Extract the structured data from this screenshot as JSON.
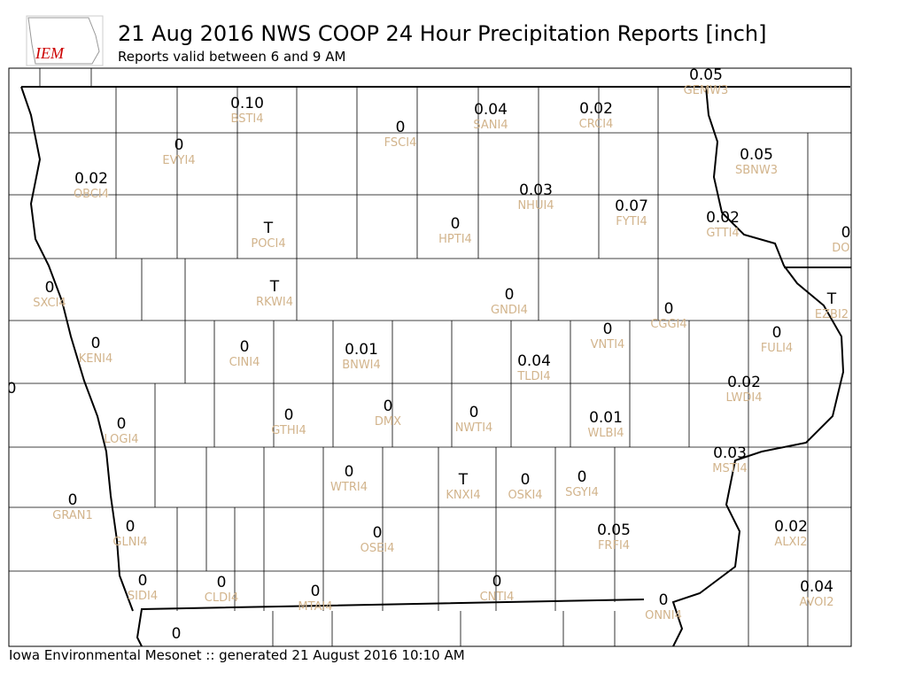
{
  "header": {
    "logo_text": "IEM",
    "title": "21 Aug 2016 NWS COOP 24 Hour Precipitation Reports [inch]",
    "subtitle": "Reports valid between 6 and 9 AM"
  },
  "stations": [
    {
      "value": "0.10",
      "id": "BSTI4"
    },
    {
      "value": "0",
      "id": "FSCI4"
    },
    {
      "value": "0.04",
      "id": "SANI4"
    },
    {
      "value": "0.02",
      "id": "CRCI4"
    },
    {
      "value": "0.05",
      "id": "GEMW3"
    },
    {
      "value": "0",
      "id": "EVYI4"
    },
    {
      "value": "0.02",
      "id": "OBCI4"
    },
    {
      "value": "0.03",
      "id": "NHUI4"
    },
    {
      "value": "0.07",
      "id": "FYTI4"
    },
    {
      "value": "0.05",
      "id": "SBNW3"
    },
    {
      "value": "0.02",
      "id": "GTTI4"
    },
    {
      "value": "0",
      "id": "DOM"
    },
    {
      "value": "T",
      "id": "POCI4"
    },
    {
      "value": "0",
      "id": "HPTI4"
    },
    {
      "value": "0",
      "id": "SXCI4"
    },
    {
      "value": "T",
      "id": "RKWI4"
    },
    {
      "value": "0",
      "id": "GNDI4"
    },
    {
      "value": "0",
      "id": "CGGI4"
    },
    {
      "value": "T",
      "id": "EZBI2"
    },
    {
      "value": "0",
      "id": "VNTI4"
    },
    {
      "value": "0",
      "id": "FULI4"
    },
    {
      "value": "0",
      "id": "KENI4"
    },
    {
      "value": "0",
      "id": "CINI4"
    },
    {
      "value": "0.01",
      "id": "BNWI4"
    },
    {
      "value": "0.04",
      "id": "TLDI4"
    },
    {
      "value": "0"
    },
    {
      "value": "0.02",
      "id": "LWDI4"
    },
    {
      "value": "0",
      "id": "DMX"
    },
    {
      "value": "0",
      "id": "GTHI4"
    },
    {
      "value": "0",
      "id": "NWTI4"
    },
    {
      "value": "0.01",
      "id": "WLBI4"
    },
    {
      "value": "0",
      "id": "LOGI4"
    },
    {
      "value": "0.03",
      "id": "MSTI4"
    },
    {
      "value": "0",
      "id": "WTRI4"
    },
    {
      "value": "T",
      "id": "KNXI4"
    },
    {
      "value": "0",
      "id": "OSKI4"
    },
    {
      "value": "0",
      "id": "SGYI4"
    },
    {
      "value": "0",
      "id": "GRAN1"
    },
    {
      "value": "0",
      "id": "GLNI4"
    },
    {
      "value": "0",
      "id": "OSEI4"
    },
    {
      "value": "0.05",
      "id": "FRFI4"
    },
    {
      "value": "0.02",
      "id": "ALXI2"
    },
    {
      "value": "0",
      "id": "SIDI4"
    },
    {
      "value": "0",
      "id": "CLDI4"
    },
    {
      "value": "0",
      "id": "MTAI4"
    },
    {
      "value": "0",
      "id": "CNTI4"
    },
    {
      "value": "0",
      "id": "ONNI4"
    },
    {
      "value": "0.04",
      "id": "AVOI2"
    },
    {
      "value": "0"
    }
  ],
  "footer": "Iowa Environmental Mesonet :: generated 21 August 2016 10:10 AM"
}
